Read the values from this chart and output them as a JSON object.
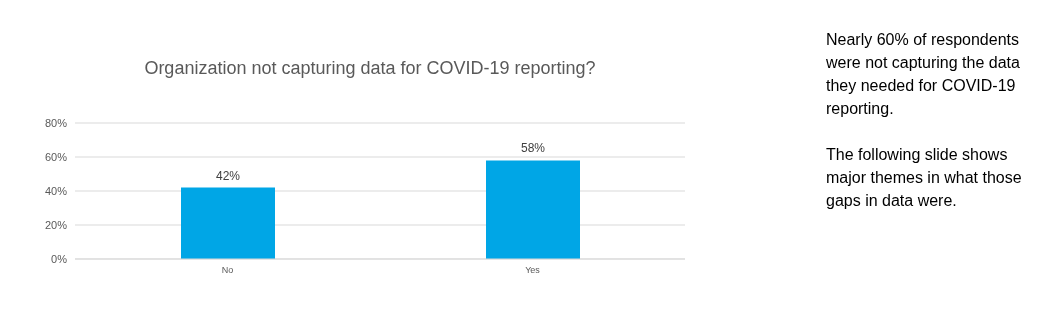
{
  "chart_data": {
    "type": "bar",
    "title": "Organization not capturing data for COVID-19 reporting?",
    "categories": [
      "No",
      "Yes"
    ],
    "values": [
      42,
      58
    ],
    "color": "#00a6e6",
    "value_labels": [
      "42%",
      "58%"
    ],
    "ylim": [
      0,
      80
    ],
    "yticks": [
      {
        "value": 0,
        "label": "0%"
      },
      {
        "value": 20,
        "label": "20%"
      },
      {
        "value": 40,
        "label": "40%"
      },
      {
        "value": 60,
        "label": "60%"
      },
      {
        "value": 80,
        "label": "80%"
      }
    ],
    "grid": "y",
    "annotations": [
      "Nearly 60% of respondents were not capturing the data they needed for COVID-19 reporting.",
      "The following slide shows major themes in what those gaps in data were."
    ]
  }
}
